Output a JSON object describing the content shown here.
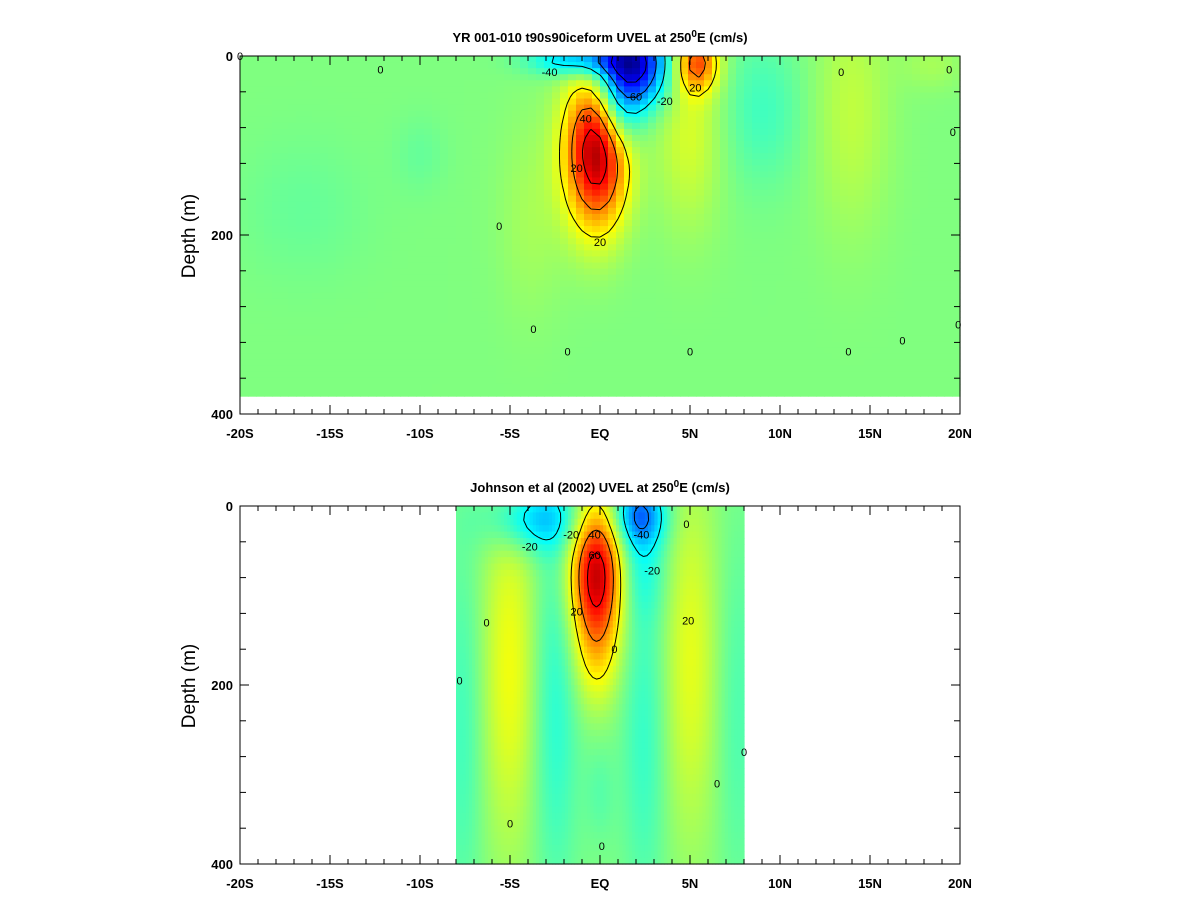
{
  "chart_data": [
    {
      "type": "heatmap",
      "title": "YR 001-010 t90s90iceform UVEL at 250",
      "title_sup": "0",
      "title_tail": "E (cm/s)",
      "ylabel": "Depth (m)",
      "xlabel": "",
      "xlim": [
        -20,
        20
      ],
      "ylim": [
        400,
        0
      ],
      "x_ticks": [
        {
          "v": -20,
          "label": "-20S"
        },
        {
          "v": -15,
          "label": "-15S"
        },
        {
          "v": -10,
          "label": "-10S"
        },
        {
          "v": -5,
          "label": "-5S"
        },
        {
          "v": 0,
          "label": "EQ"
        },
        {
          "v": 5,
          "label": "5N"
        },
        {
          "v": 10,
          "label": "10N"
        },
        {
          "v": 15,
          "label": "15N"
        },
        {
          "v": 20,
          "label": "20N"
        }
      ],
      "y_ticks": [
        {
          "v": 0,
          "label": "0"
        },
        {
          "v": 200,
          "label": "200"
        },
        {
          "v": 400,
          "label": "400"
        }
      ],
      "data_extent": {
        "x": [
          -20,
          20
        ],
        "depth": [
          0,
          380
        ]
      },
      "features": [
        {
          "x": -0.2,
          "depth": 105,
          "sx": 1.2,
          "sz": 60,
          "value": 75
        },
        {
          "x": 1.7,
          "depth": 10,
          "sx": 1.4,
          "sz": 32,
          "value": -72
        },
        {
          "x": -1.2,
          "depth": 5,
          "sx": 1.8,
          "sz": 12,
          "value": -32
        },
        {
          "x": 1.0,
          "depth": 65,
          "sx": 0.9,
          "sz": 30,
          "value": -28
        },
        {
          "x": 5.4,
          "depth": 8,
          "sx": 0.8,
          "sz": 22,
          "value": 42
        },
        {
          "x": 5.0,
          "depth": 80,
          "sx": 1.3,
          "sz": 80,
          "value": 14
        },
        {
          "x": 9.0,
          "depth": 60,
          "sx": 1.6,
          "sz": 60,
          "value": -10
        },
        {
          "x": 14.0,
          "depth": 60,
          "sx": 1.5,
          "sz": 100,
          "value": 10
        },
        {
          "x": -3.8,
          "depth": 180,
          "sx": 1.3,
          "sz": 80,
          "value": 6
        },
        {
          "x": -16.5,
          "depth": 170,
          "sx": 2.5,
          "sz": 55,
          "value": -4
        },
        {
          "x": -10.0,
          "depth": 110,
          "sx": 1.0,
          "sz": 30,
          "value": -4
        },
        {
          "x": 18.5,
          "depth": 10,
          "sx": 1.2,
          "sz": 20,
          "value": 6
        }
      ],
      "contour_levels": [
        -80,
        -60,
        -40,
        -20,
        20,
        40,
        60
      ],
      "contour_labels": [
        {
          "x": -20.0,
          "depth": 0,
          "text": "0"
        },
        {
          "x": -12.2,
          "depth": 15,
          "text": "0"
        },
        {
          "x": -2.8,
          "depth": 18,
          "text": "-40"
        },
        {
          "x": 1.9,
          "depth": 45,
          "text": "-60"
        },
        {
          "x": 3.6,
          "depth": 50,
          "text": "-20"
        },
        {
          "x": -0.8,
          "depth": 70,
          "text": "40"
        },
        {
          "x": -1.3,
          "depth": 125,
          "text": "20"
        },
        {
          "x": 0.0,
          "depth": 208,
          "text": "20"
        },
        {
          "x": 5.3,
          "depth": 35,
          "text": "20"
        },
        {
          "x": 13.4,
          "depth": 18,
          "text": "0"
        },
        {
          "x": 19.4,
          "depth": 15,
          "text": "0"
        },
        {
          "x": 19.6,
          "depth": 85,
          "text": "0"
        },
        {
          "x": -5.6,
          "depth": 190,
          "text": "0"
        },
        {
          "x": -3.7,
          "depth": 305,
          "text": "0"
        },
        {
          "x": -1.8,
          "depth": 330,
          "text": "0"
        },
        {
          "x": 5.0,
          "depth": 330,
          "text": "0"
        },
        {
          "x": 13.8,
          "depth": 330,
          "text": "0"
        },
        {
          "x": 16.8,
          "depth": 318,
          "text": "0"
        },
        {
          "x": 19.9,
          "depth": 300,
          "text": "0"
        }
      ]
    },
    {
      "type": "heatmap",
      "title": "Johnson et al (2002) UVEL at 250",
      "title_sup": "0",
      "title_tail": "E (cm/s)",
      "ylabel": "Depth (m)",
      "xlabel": "",
      "xlim": [
        -20,
        20
      ],
      "ylim": [
        400,
        0
      ],
      "x_ticks": [
        {
          "v": -20,
          "label": "-20S"
        },
        {
          "v": -15,
          "label": "-15S"
        },
        {
          "v": -10,
          "label": "-10S"
        },
        {
          "v": -5,
          "label": "-5S"
        },
        {
          "v": 0,
          "label": "EQ"
        },
        {
          "v": 5,
          "label": "5N"
        },
        {
          "v": 10,
          "label": "10N"
        },
        {
          "v": 15,
          "label": "15N"
        },
        {
          "v": 20,
          "label": "20N"
        }
      ],
      "y_ticks": [
        {
          "v": 0,
          "label": "0"
        },
        {
          "v": 200,
          "label": "200"
        },
        {
          "v": 400,
          "label": "400"
        }
      ],
      "data_extent": {
        "x": [
          -8,
          8
        ],
        "depth": [
          0,
          400
        ]
      },
      "features": [
        {
          "x": -0.2,
          "depth": 75,
          "sx": 1.0,
          "sz": 55,
          "value": 68
        },
        {
          "x": -0.2,
          "depth": 170,
          "sx": 0.9,
          "sz": 45,
          "value": 16
        },
        {
          "x": -3.6,
          "depth": 15,
          "sx": 1.8,
          "sz": 25,
          "value": -28
        },
        {
          "x": 2.2,
          "depth": 10,
          "sx": 1.0,
          "sz": 25,
          "value": -40
        },
        {
          "x": 2.3,
          "depth": 70,
          "sx": 1.0,
          "sz": 40,
          "value": -12
        },
        {
          "x": -5.0,
          "depth": 180,
          "sx": 1.1,
          "sz": 140,
          "value": 18
        },
        {
          "x": 5.0,
          "depth": 170,
          "sx": 1.1,
          "sz": 140,
          "value": 16
        },
        {
          "x": -2.5,
          "depth": 220,
          "sx": 0.9,
          "sz": 150,
          "value": -14
        },
        {
          "x": 2.5,
          "depth": 250,
          "sx": 0.9,
          "sz": 140,
          "value": -12
        },
        {
          "x": 0.0,
          "depth": 320,
          "sx": 0.6,
          "sz": 40,
          "value": -6
        },
        {
          "x": -7.6,
          "depth": 250,
          "sx": 0.8,
          "sz": 150,
          "value": -10
        },
        {
          "x": 7.6,
          "depth": 230,
          "sx": 0.8,
          "sz": 150,
          "value": -8
        }
      ],
      "contour_levels": [
        -60,
        -40,
        -20,
        20,
        40,
        60
      ],
      "contour_labels": [
        {
          "x": -3.9,
          "depth": 45,
          "text": "-20"
        },
        {
          "x": -1.6,
          "depth": 32,
          "text": "-20"
        },
        {
          "x": -0.3,
          "depth": 32,
          "text": "40"
        },
        {
          "x": -0.3,
          "depth": 55,
          "text": "60"
        },
        {
          "x": -1.3,
          "depth": 118,
          "text": "20"
        },
        {
          "x": 2.3,
          "depth": 32,
          "text": "-40"
        },
        {
          "x": 2.9,
          "depth": 72,
          "text": "-20"
        },
        {
          "x": 4.9,
          "depth": 128,
          "text": "20"
        },
        {
          "x": 4.8,
          "depth": 20,
          "text": "0"
        },
        {
          "x": 0.8,
          "depth": 160,
          "text": "0"
        },
        {
          "x": -6.3,
          "depth": 130,
          "text": "0"
        },
        {
          "x": -7.8,
          "depth": 195,
          "text": "0"
        },
        {
          "x": 8.0,
          "depth": 275,
          "text": "0"
        },
        {
          "x": 6.5,
          "depth": 310,
          "text": "0"
        },
        {
          "x": -5.0,
          "depth": 355,
          "text": "0"
        },
        {
          "x": 0.1,
          "depth": 380,
          "text": "0"
        }
      ]
    }
  ]
}
